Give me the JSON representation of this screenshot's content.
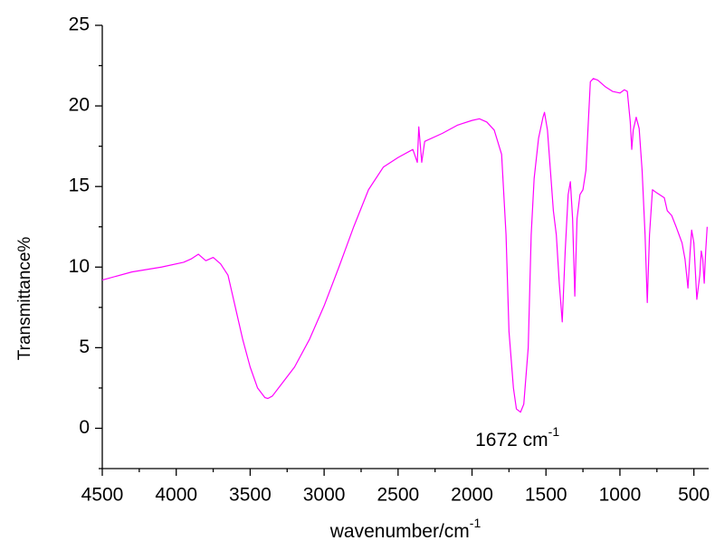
{
  "chart_data": {
    "type": "line",
    "x_label": "wavenumber/cm",
    "x_label_sup": "-1",
    "y_label": "Transmittance%",
    "annotation": "1672 cm",
    "annotation_sup": "-1",
    "x": [
      4500,
      4300,
      4100,
      3950,
      3900,
      3850,
      3800,
      3750,
      3700,
      3650,
      3600,
      3550,
      3500,
      3450,
      3400,
      3380,
      3350,
      3300,
      3200,
      3100,
      3000,
      2900,
      2800,
      2700,
      2600,
      2500,
      2400,
      2370,
      2360,
      2340,
      2320,
      2200,
      2100,
      2000,
      1950,
      1900,
      1850,
      1800,
      1770,
      1750,
      1720,
      1700,
      1672,
      1650,
      1620,
      1600,
      1580,
      1550,
      1520,
      1510,
      1490,
      1470,
      1450,
      1430,
      1410,
      1390,
      1370,
      1350,
      1335,
      1320,
      1305,
      1290,
      1270,
      1250,
      1230,
      1200,
      1180,
      1150,
      1100,
      1050,
      1000,
      970,
      950,
      930,
      920,
      910,
      890,
      870,
      850,
      830,
      815,
      800,
      780,
      750,
      700,
      680,
      650,
      620,
      600,
      580,
      560,
      540,
      525,
      515,
      500,
      480,
      460,
      450,
      440,
      430,
      420,
      410
    ],
    "series": [
      {
        "name": "Transmittance",
        "color": "#ff00ff",
        "values": [
          9.2,
          9.7,
          10.0,
          10.3,
          10.5,
          10.8,
          10.4,
          10.6,
          10.2,
          9.5,
          7.5,
          5.5,
          3.8,
          2.5,
          1.9,
          1.85,
          2.0,
          2.6,
          3.8,
          5.5,
          7.6,
          10.0,
          12.5,
          14.8,
          16.2,
          16.8,
          17.3,
          16.5,
          18.7,
          16.5,
          17.8,
          18.3,
          18.8,
          19.1,
          19.2,
          19.0,
          18.5,
          17.0,
          12,
          6,
          2.5,
          1.2,
          1.0,
          1.5,
          5,
          12,
          15.5,
          18,
          19.3,
          19.6,
          18.5,
          16,
          13.5,
          12.0,
          9,
          6.6,
          11,
          14.5,
          15.3,
          13,
          8.2,
          13,
          14.5,
          14.8,
          16,
          21.5,
          21.7,
          21.6,
          21.2,
          20.9,
          20.8,
          21.0,
          20.9,
          19,
          17.3,
          18.5,
          19.3,
          18.6,
          16,
          12,
          7.8,
          12,
          14.8,
          14.6,
          14.3,
          13.5,
          13.2,
          12.5,
          12.0,
          11.5,
          10.5,
          8.7,
          11,
          12.3,
          11.5,
          8.0,
          9.5,
          11.0,
          10.5,
          9.0,
          11.0,
          12.5
        ]
      }
    ],
    "xlim": [
      4500,
      400
    ],
    "ylim": [
      -2.5,
      25
    ],
    "xticks": [
      4500,
      4000,
      3500,
      3000,
      2500,
      2000,
      1500,
      1000,
      500
    ],
    "yticks": [
      0,
      5,
      10,
      15,
      20,
      25
    ],
    "xticks_minor": [
      4250,
      3750,
      3250,
      2750,
      2250,
      1750,
      1250,
      750
    ],
    "yticks_minor": [
      -2.5,
      2.5,
      7.5,
      12.5,
      17.5,
      22.5
    ]
  }
}
